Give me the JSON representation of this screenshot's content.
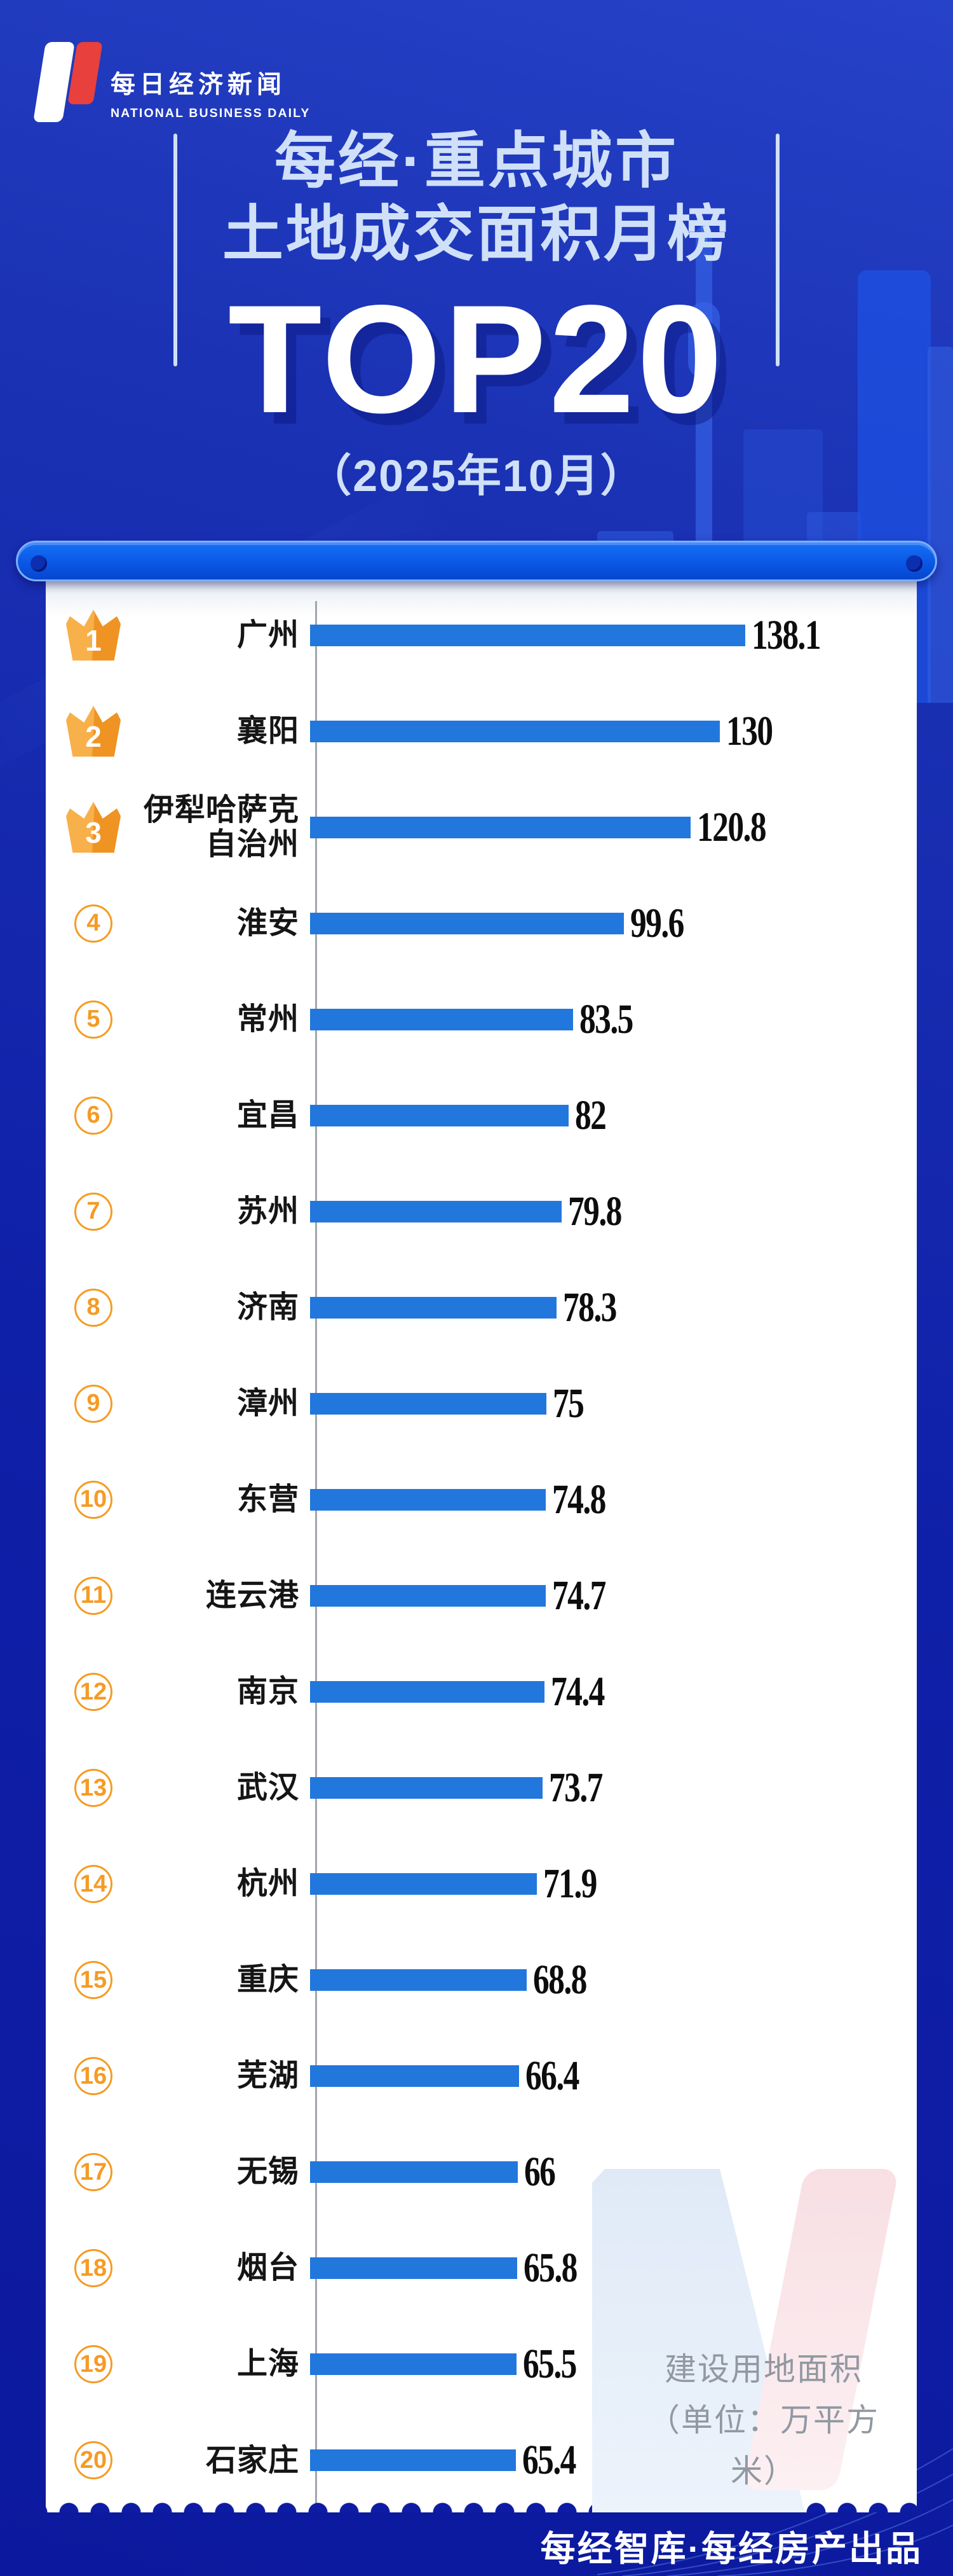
{
  "brand": {
    "logo_title": "每日经济新闻",
    "logo_subtitle": "NATIONAL BUSINESS DAILY"
  },
  "header": {
    "title_line1": "每经·重点城市",
    "title_line2": "土地成交面积月榜",
    "top_label": "TOP20",
    "period": "（2025年10月）"
  },
  "note": {
    "line1": "建设用地面积",
    "line2": "（单位：万平方米）"
  },
  "footer": {
    "credit": "每经智库·每经房产出品"
  },
  "colors": {
    "background_top": "#2642C8",
    "background_bottom": "#0C199E",
    "bar": "#2277DD",
    "rank_accent": "#F59B25",
    "title_light": "#CFE0F8",
    "pill_blue": "#0A58E6",
    "logo_red": "#E8403C",
    "value_text": "#0D0D0D",
    "note_text": "#9298A2"
  },
  "chart_data": {
    "type": "bar",
    "orientation": "horizontal",
    "title": "每经·重点城市土地成交面积月榜 TOP20（2025年10月）",
    "value_label": "建设用地面积",
    "unit": "万平方米",
    "xlim": [
      0,
      138.1
    ],
    "grid": false,
    "legend": false,
    "items": [
      {
        "rank": 1,
        "city": "广州",
        "value": 138.1
      },
      {
        "rank": 2,
        "city": "襄阳",
        "value": 130
      },
      {
        "rank": 3,
        "city": "伊犁哈萨克自治州",
        "value": 120.8
      },
      {
        "rank": 4,
        "city": "淮安",
        "value": 99.6
      },
      {
        "rank": 5,
        "city": "常州",
        "value": 83.5
      },
      {
        "rank": 6,
        "city": "宜昌",
        "value": 82
      },
      {
        "rank": 7,
        "city": "苏州",
        "value": 79.8
      },
      {
        "rank": 8,
        "city": "济南",
        "value": 78.3
      },
      {
        "rank": 9,
        "city": "漳州",
        "value": 75
      },
      {
        "rank": 10,
        "city": "东营",
        "value": 74.8
      },
      {
        "rank": 11,
        "city": "连云港",
        "value": 74.7
      },
      {
        "rank": 12,
        "city": "南京",
        "value": 74.4
      },
      {
        "rank": 13,
        "city": "武汉",
        "value": 73.7
      },
      {
        "rank": 14,
        "city": "杭州",
        "value": 71.9
      },
      {
        "rank": 15,
        "city": "重庆",
        "value": 68.8
      },
      {
        "rank": 16,
        "city": "芜湖",
        "value": 66.4
      },
      {
        "rank": 17,
        "city": "无锡",
        "value": 66
      },
      {
        "rank": 18,
        "city": "烟台",
        "value": 65.8
      },
      {
        "rank": 19,
        "city": "上海",
        "value": 65.5
      },
      {
        "rank": 20,
        "city": "石家庄",
        "value": 65.4
      }
    ]
  }
}
